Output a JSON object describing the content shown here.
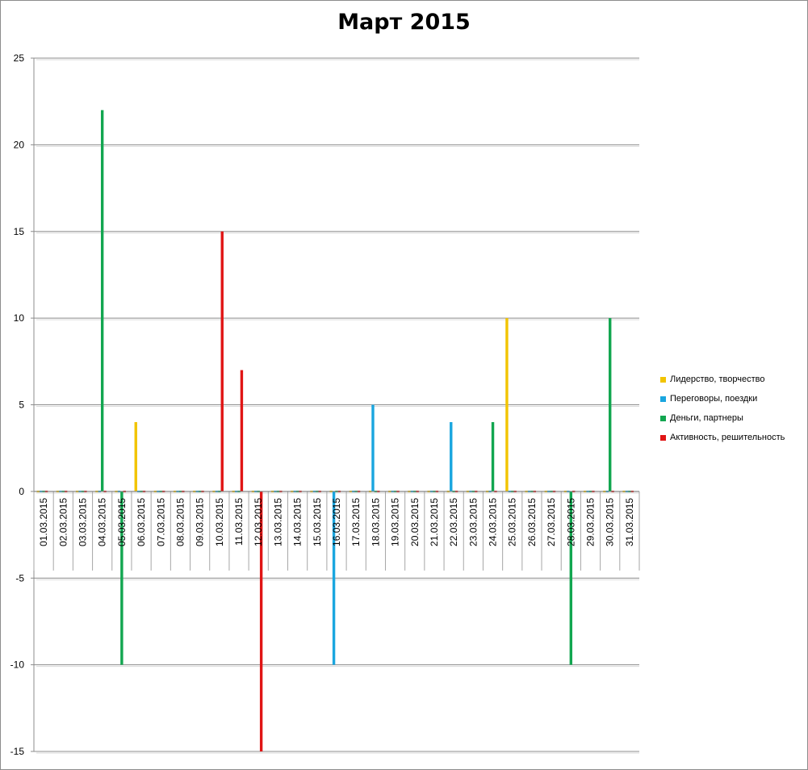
{
  "chart_data": {
    "type": "bar",
    "title": "Март 2015",
    "xlabel": "",
    "ylabel": "",
    "ylim": [
      -15,
      25
    ],
    "yticks": [
      "25",
      "20",
      "15",
      "10",
      "5",
      "0",
      "-5",
      "-10",
      "-15"
    ],
    "categories": [
      "01.03.2015",
      "02.03.2015",
      "03.03.2015",
      "04.03.2015",
      "05.03.2015",
      "06.03.2015",
      "07.03.2015",
      "08.03.2015",
      "09.03.2015",
      "10.03.2015",
      "11.03.2015",
      "12.03.2015",
      "13.03.2015",
      "14.03.2015",
      "15.03.2015",
      "16.03.2015",
      "17.03.2015",
      "18.03.2015",
      "19.03.2015",
      "20.03.2015",
      "21.03.2015",
      "22.03.2015",
      "23.03.2015",
      "24.03.2015",
      "25.03.2015",
      "26.03.2015",
      "27.03.2015",
      "28.03.2015",
      "29.03.2015",
      "30.03.2015",
      "31.03.2015"
    ],
    "series": [
      {
        "name": "Лидерство, творчество",
        "color": "#f2c400",
        "values": [
          0,
          0,
          0,
          0,
          0,
          4,
          0,
          0,
          0,
          0,
          0,
          0,
          0,
          0,
          0,
          0,
          0,
          0,
          0,
          0,
          0,
          0,
          0,
          0,
          10,
          0,
          0,
          0,
          0,
          0,
          0
        ]
      },
      {
        "name": "Переговоры, поездки",
        "color": "#1aa6df",
        "values": [
          0,
          0,
          0,
          0,
          0,
          0,
          0,
          0,
          0,
          0,
          0,
          0,
          0,
          0,
          0,
          -10,
          0,
          5,
          0,
          0,
          0,
          4,
          0,
          0,
          0,
          0,
          0,
          0,
          0,
          0,
          0
        ]
      },
      {
        "name": "Деньги, партнеры",
        "color": "#12a650",
        "values": [
          0,
          0,
          0,
          22,
          -10,
          0,
          0,
          0,
          0,
          0,
          0,
          0,
          0,
          0,
          0,
          0,
          0,
          0,
          0,
          0,
          0,
          0,
          0,
          4,
          0,
          0,
          0,
          -10,
          0,
          10,
          0
        ]
      },
      {
        "name": "Активность, решительность",
        "color": "#e01515",
        "values": [
          0,
          0,
          0,
          0,
          0,
          0,
          0,
          0,
          0,
          15,
          7,
          -15,
          0,
          0,
          0,
          0,
          0,
          0,
          0,
          0,
          0,
          0,
          0,
          0,
          0,
          0,
          0,
          0,
          0,
          0,
          0
        ]
      }
    ],
    "grid": true,
    "legend": "right"
  }
}
